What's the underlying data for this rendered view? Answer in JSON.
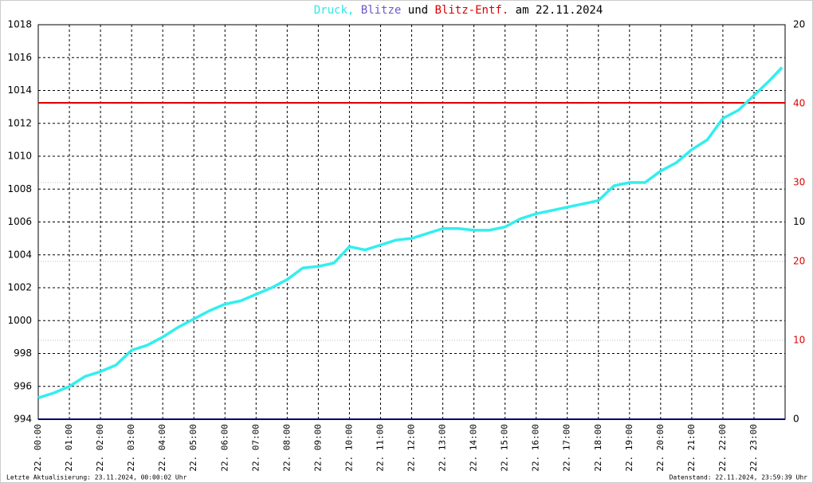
{
  "chart_data": {
    "type": "line",
    "title_parts": [
      {
        "text": "Druck,",
        "color": "#33e6e6"
      },
      {
        "text": "Blitze",
        "color": "#6a5acd"
      },
      {
        "text": "und",
        "color": "#000000"
      },
      {
        "text": "Blitz-Entf.",
        "color": "#dd0000"
      },
      {
        "text": "am 22.11.2024",
        "color": "#000000"
      }
    ],
    "x": [
      0,
      0.5,
      1,
      1.5,
      2,
      2.5,
      3,
      3.5,
      4,
      4.5,
      5,
      5.5,
      6,
      6.5,
      7,
      7.5,
      8,
      8.5,
      9,
      9.5,
      10,
      10.5,
      11,
      11.5,
      12,
      12.5,
      13,
      13.5,
      14,
      14.5,
      15,
      15.5,
      16,
      16.5,
      17,
      17.5,
      18,
      18.5,
      19,
      19.5,
      20,
      20.5,
      21,
      21.5,
      22,
      22.5,
      23,
      23.5,
      23.9
    ],
    "series": [
      {
        "name": "Druck",
        "color": "#33eeee",
        "values": [
          995.3,
          995.6,
          996.0,
          996.6,
          996.9,
          997.3,
          998.2,
          998.5,
          999.0,
          999.6,
          1000.1,
          1000.6,
          1001.0,
          1001.2,
          1001.6,
          1002.0,
          1002.5,
          1003.2,
          1003.3,
          1003.5,
          1004.5,
          1004.3,
          1004.6,
          1004.9,
          1005.0,
          1005.3,
          1005.6,
          1005.6,
          1005.5,
          1005.5,
          1005.7,
          1006.2,
          1006.5,
          1006.7,
          1006.9,
          1007.1,
          1007.3,
          1008.2,
          1008.4,
          1008.4,
          1009.1,
          1009.6,
          1010.4,
          1011.0,
          1012.3,
          1012.8,
          1013.7,
          1014.6,
          1015.4
        ]
      }
    ],
    "reference_line": {
      "value": 1013.25,
      "color": "#dd0000"
    },
    "xlim": [
      0,
      24
    ],
    "xticks": [
      {
        "value": 0,
        "label": "22. 00:00"
      },
      {
        "value": 1,
        "label": "22. 01:00"
      },
      {
        "value": 2,
        "label": "22. 02:00"
      },
      {
        "value": 3,
        "label": "22. 03:00"
      },
      {
        "value": 4,
        "label": "22. 04:00"
      },
      {
        "value": 5,
        "label": "22. 05:00"
      },
      {
        "value": 6,
        "label": "22. 06:00"
      },
      {
        "value": 7,
        "label": "22. 07:00"
      },
      {
        "value": 8,
        "label": "22. 08:00"
      },
      {
        "value": 9,
        "label": "22. 09:00"
      },
      {
        "value": 10,
        "label": "22. 10:00"
      },
      {
        "value": 11,
        "label": "22. 11:00"
      },
      {
        "value": 12,
        "label": "22. 12:00"
      },
      {
        "value": 13,
        "label": "22. 13:00"
      },
      {
        "value": 14,
        "label": "22. 14:00"
      },
      {
        "value": 15,
        "label": "22. 15:00"
      },
      {
        "value": 16,
        "label": "22. 16:00"
      },
      {
        "value": 17,
        "label": "22. 17:00"
      },
      {
        "value": 18,
        "label": "22. 18:00"
      },
      {
        "value": 19,
        "label": "22. 19:00"
      },
      {
        "value": 20,
        "label": "22. 20:00"
      },
      {
        "value": 21,
        "label": "22. 21:00"
      },
      {
        "value": 22,
        "label": "22. 22:00"
      },
      {
        "value": 23,
        "label": "22. 23:00"
      }
    ],
    "ylim": [
      994,
      1018
    ],
    "yticks": [
      994,
      996,
      998,
      1000,
      1002,
      1004,
      1006,
      1008,
      1010,
      1012,
      1014,
      1016,
      1018
    ],
    "y2lim": [
      0,
      20
    ],
    "y2ticks": [
      0,
      10,
      20
    ],
    "y2color": "#000000",
    "y3lim": [
      0,
      50
    ],
    "y3ticks": [
      10,
      20,
      30,
      40
    ],
    "y3color": "#dd0000",
    "grid": true,
    "footer_left": "Letzte Aktualisierung: 23.11.2024, 00:00:02 Uhr",
    "footer_right": "Datenstand: 22.11.2024, 23:59:39 Uhr"
  }
}
